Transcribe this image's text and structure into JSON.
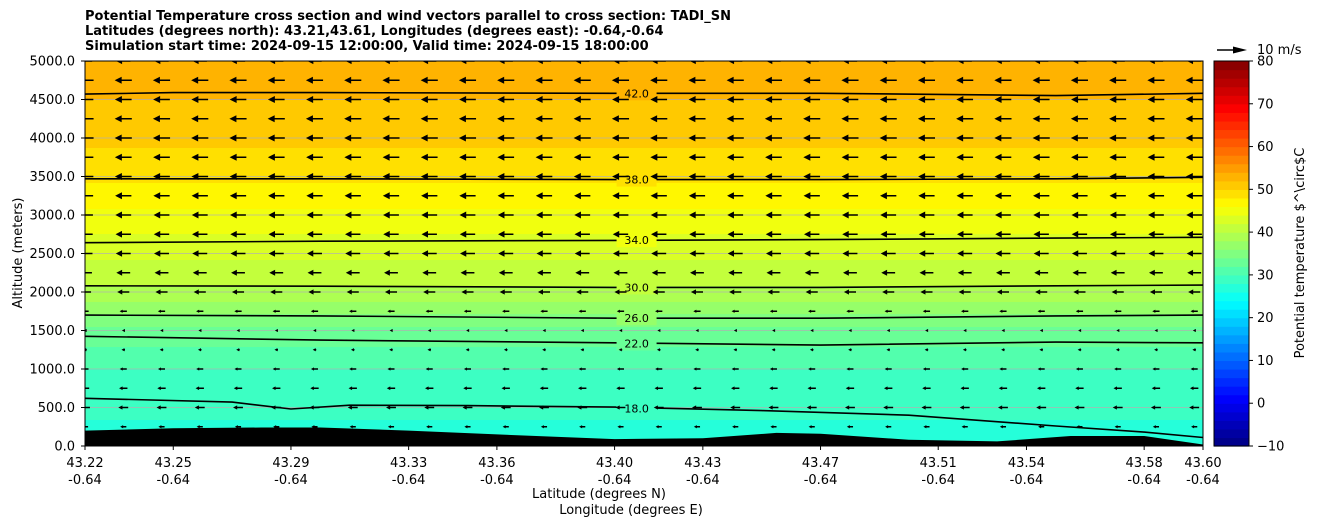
{
  "chart_data": {
    "type": "contourf",
    "title_lines": [
      "Potential Temperature cross section and wind vectors parallel to cross section: TADI_SN",
      "Latitudes (degrees north): 43.21,43.61, Longitudes (degrees east): -0.64,-0.64",
      "Simulation start time: 2024-09-15 12:00:00, Valid time: 2024-09-15 18:00:00"
    ],
    "xlabel": "Latitude (degrees N)",
    "xlabel2": "Longitude (degrees E)",
    "ylabel": "Altitude (meters)",
    "xlim": [
      43.22,
      43.6
    ],
    "ylim": [
      0,
      5000
    ],
    "x_tick_values": [
      43.22,
      43.25,
      43.29,
      43.33,
      43.36,
      43.4,
      43.43,
      43.47,
      43.51,
      43.54,
      43.58,
      43.6
    ],
    "x_tick_labels": [
      "43.22",
      "43.25",
      "43.29",
      "43.33",
      "43.36",
      "43.40",
      "43.43",
      "43.47",
      "43.51",
      "43.54",
      "43.58",
      "43.60"
    ],
    "x_tick_labels2": [
      "-0.64",
      "-0.64",
      "-0.64",
      "-0.64",
      "-0.64",
      "-0.64",
      "-0.64",
      "-0.64",
      "-0.64",
      "-0.64",
      "-0.64",
      "-0.64"
    ],
    "y_tick_values": [
      0,
      500,
      1000,
      1500,
      2000,
      2500,
      3000,
      3500,
      4000,
      4500,
      5000
    ],
    "y_tick_labels": [
      "0.0",
      "500.0",
      "1000.0",
      "1500.0",
      "2000.0",
      "2500.0",
      "3000.0",
      "3500.0",
      "4000.0",
      "4500.0",
      "5000.0"
    ],
    "colorbar": {
      "label": "Potential temperature $^\\circ$C",
      "range": [
        -10,
        80
      ],
      "tick_values": [
        -10,
        0,
        10,
        20,
        30,
        40,
        50,
        60,
        70,
        80
      ],
      "tick_labels": [
        "−10",
        "0",
        "10",
        "20",
        "30",
        "40",
        "50",
        "60",
        "70",
        "80"
      ],
      "colormap": "jet"
    },
    "field_profile": {
      "altitude_m": [
        0,
        500,
        1000,
        1500,
        2000,
        2500,
        3000,
        3500,
        4000,
        4500,
        5000
      ],
      "potential_temperature_c": [
        17,
        18.5,
        20,
        23.5,
        29.5,
        32.5,
        35.5,
        38.5,
        40.5,
        42,
        43.5
      ]
    },
    "contour_lines": [
      {
        "level": 18.0,
        "label": "18.0",
        "x": [
          43.22,
          43.27,
          43.29,
          43.31,
          43.35,
          43.4,
          43.45,
          43.5,
          43.55,
          43.58,
          43.6
        ],
        "y": [
          620,
          570,
          480,
          530,
          525,
          505,
          460,
          400,
          260,
          180,
          110
        ]
      },
      {
        "level": 22.0,
        "label": "22.0",
        "x": [
          43.22,
          43.3,
          43.4,
          43.47,
          43.55,
          43.6
        ],
        "y": [
          1425,
          1375,
          1340,
          1310,
          1350,
          1340
        ]
      },
      {
        "level": 26.0,
        "label": "26.0",
        "x": [
          43.22,
          43.3,
          43.4,
          43.47,
          43.55,
          43.6
        ],
        "y": [
          1700,
          1690,
          1660,
          1660,
          1690,
          1700
        ]
      },
      {
        "level": 30.0,
        "label": "30.0",
        "x": [
          43.22,
          43.3,
          43.4,
          43.47,
          43.55,
          43.6
        ],
        "y": [
          2080,
          2075,
          2060,
          2060,
          2080,
          2090
        ]
      },
      {
        "level": 34.0,
        "label": "34.0",
        "x": [
          43.22,
          43.3,
          43.4,
          43.47,
          43.55,
          43.6
        ],
        "y": [
          2640,
          2660,
          2670,
          2680,
          2700,
          2710
        ]
      },
      {
        "level": 38.0,
        "label": "38.0",
        "x": [
          43.22,
          43.3,
          43.4,
          43.47,
          43.55,
          43.6
        ],
        "y": [
          3470,
          3470,
          3460,
          3460,
          3470,
          3490
        ]
      },
      {
        "level": 42.0,
        "label": "42.0",
        "x": [
          43.22,
          43.25,
          43.3,
          43.4,
          43.47,
          43.55,
          43.6
        ],
        "y": [
          4570,
          4590,
          4590,
          4580,
          4580,
          4550,
          4580
        ]
      }
    ],
    "terrain": {
      "x": [
        43.22,
        43.25,
        43.28,
        43.3,
        43.33,
        43.36,
        43.4,
        43.43,
        43.455,
        43.47,
        43.5,
        43.53,
        43.555,
        43.58,
        43.6
      ],
      "y": [
        200,
        230,
        240,
        240,
        200,
        150,
        90,
        100,
        170,
        160,
        80,
        60,
        130,
        130,
        20
      ]
    },
    "wind_vectors": {
      "direction": "toward decreasing latitude (leftward)",
      "x_columns": [
        43.22,
        43.233,
        43.246,
        43.259,
        43.272,
        43.285,
        43.298,
        43.311,
        43.324,
        43.337,
        43.35,
        43.363,
        43.376,
        43.389,
        43.402,
        43.415,
        43.428,
        43.441,
        43.454,
        43.467,
        43.48,
        43.493,
        43.506,
        43.519,
        43.532,
        43.545,
        43.558,
        43.571,
        43.584,
        43.597
      ],
      "levels": [
        {
          "altitude_m": 250,
          "speed_ms": 2.8
        },
        {
          "altitude_m": 500,
          "speed_ms": 4.5
        },
        {
          "altitude_m": 750,
          "speed_ms": 3.8
        },
        {
          "altitude_m": 1000,
          "speed_ms": 3.2
        },
        {
          "altitude_m": 1250,
          "speed_ms": 1.6
        },
        {
          "altitude_m": 1500,
          "speed_ms": 1.2
        },
        {
          "altitude_m": 1750,
          "speed_ms": 3.3
        },
        {
          "altitude_m": 2000,
          "speed_ms": 5.5
        },
        {
          "altitude_m": 2250,
          "speed_ms": 6.3
        },
        {
          "altitude_m": 2500,
          "speed_ms": 6.8
        },
        {
          "altitude_m": 2750,
          "speed_ms": 7.0
        },
        {
          "altitude_m": 3000,
          "speed_ms": 7.2
        },
        {
          "altitude_m": 3250,
          "speed_ms": 7.4
        },
        {
          "altitude_m": 3500,
          "speed_ms": 7.6
        },
        {
          "altitude_m": 3750,
          "speed_ms": 7.6
        },
        {
          "altitude_m": 4000,
          "speed_ms": 7.8
        },
        {
          "altitude_m": 4250,
          "speed_ms": 7.8
        },
        {
          "altitude_m": 4500,
          "speed_ms": 7.6
        },
        {
          "altitude_m": 4750,
          "speed_ms": 7.8
        },
        {
          "altitude_m": 5000,
          "speed_ms": 6.5
        }
      ]
    },
    "reference_vector": {
      "label": "10 m/s",
      "speed_ms": 10
    }
  }
}
